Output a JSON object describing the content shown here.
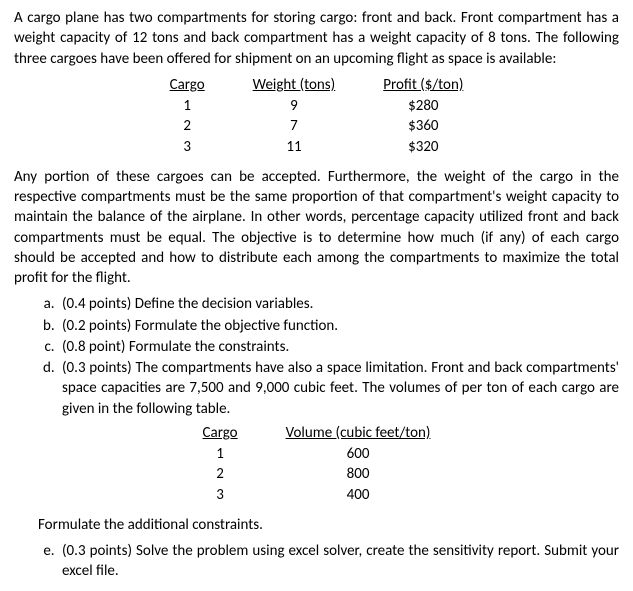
{
  "intro": "A cargo plane has two compartments for storing cargo: front and back. Front compartment has a weight capacity of 12 tons and back compartment has a weight capacity of 8 tons. The following three cargoes have been offered for shipment on an upcoming flight as space is available:",
  "table1": {
    "headers": [
      "Cargo",
      "Weight (tons)",
      "Profit ($/ton)"
    ],
    "rows": [
      [
        "1",
        "9",
        "$280"
      ],
      [
        "2",
        "7",
        "$360"
      ],
      [
        "3",
        "11",
        "$320"
      ]
    ]
  },
  "middle": "Any portion of these cargoes can be accepted. Furthermore, the weight of the cargo in the respective compartments must be the same proportion of that compartment's weight capacity to maintain the balance of the airplane. In other words, percentage capacity utilized front and back compartments must be equal. The objective is to determine how much (if any) of each cargo should be accepted and how to distribute each among the compartments to maximize the total profit for the flight.",
  "qa": "(0.4 points) Define the decision variables.",
  "qb": "(0.2 points) Formulate the objective function.",
  "qc": "(0.8 point) Formulate the constraints.",
  "qd": "(0.3 points) The compartments have also a space limitation. Front and back compartments' space capacities are 7,500 and 9,000 cubic feet. The volumes of per ton of each cargo are given in the following table.",
  "table2": {
    "headers": [
      "Cargo",
      "Volume (cubic feet/ton)"
    ],
    "rows": [
      [
        "1",
        "600"
      ],
      [
        "2",
        "800"
      ],
      [
        "3",
        "400"
      ]
    ]
  },
  "sub": "Formulate the additional constraints.",
  "qe": "(0.3 points) Solve the problem using excel solver, create the sensitivity report. Submit your excel file."
}
